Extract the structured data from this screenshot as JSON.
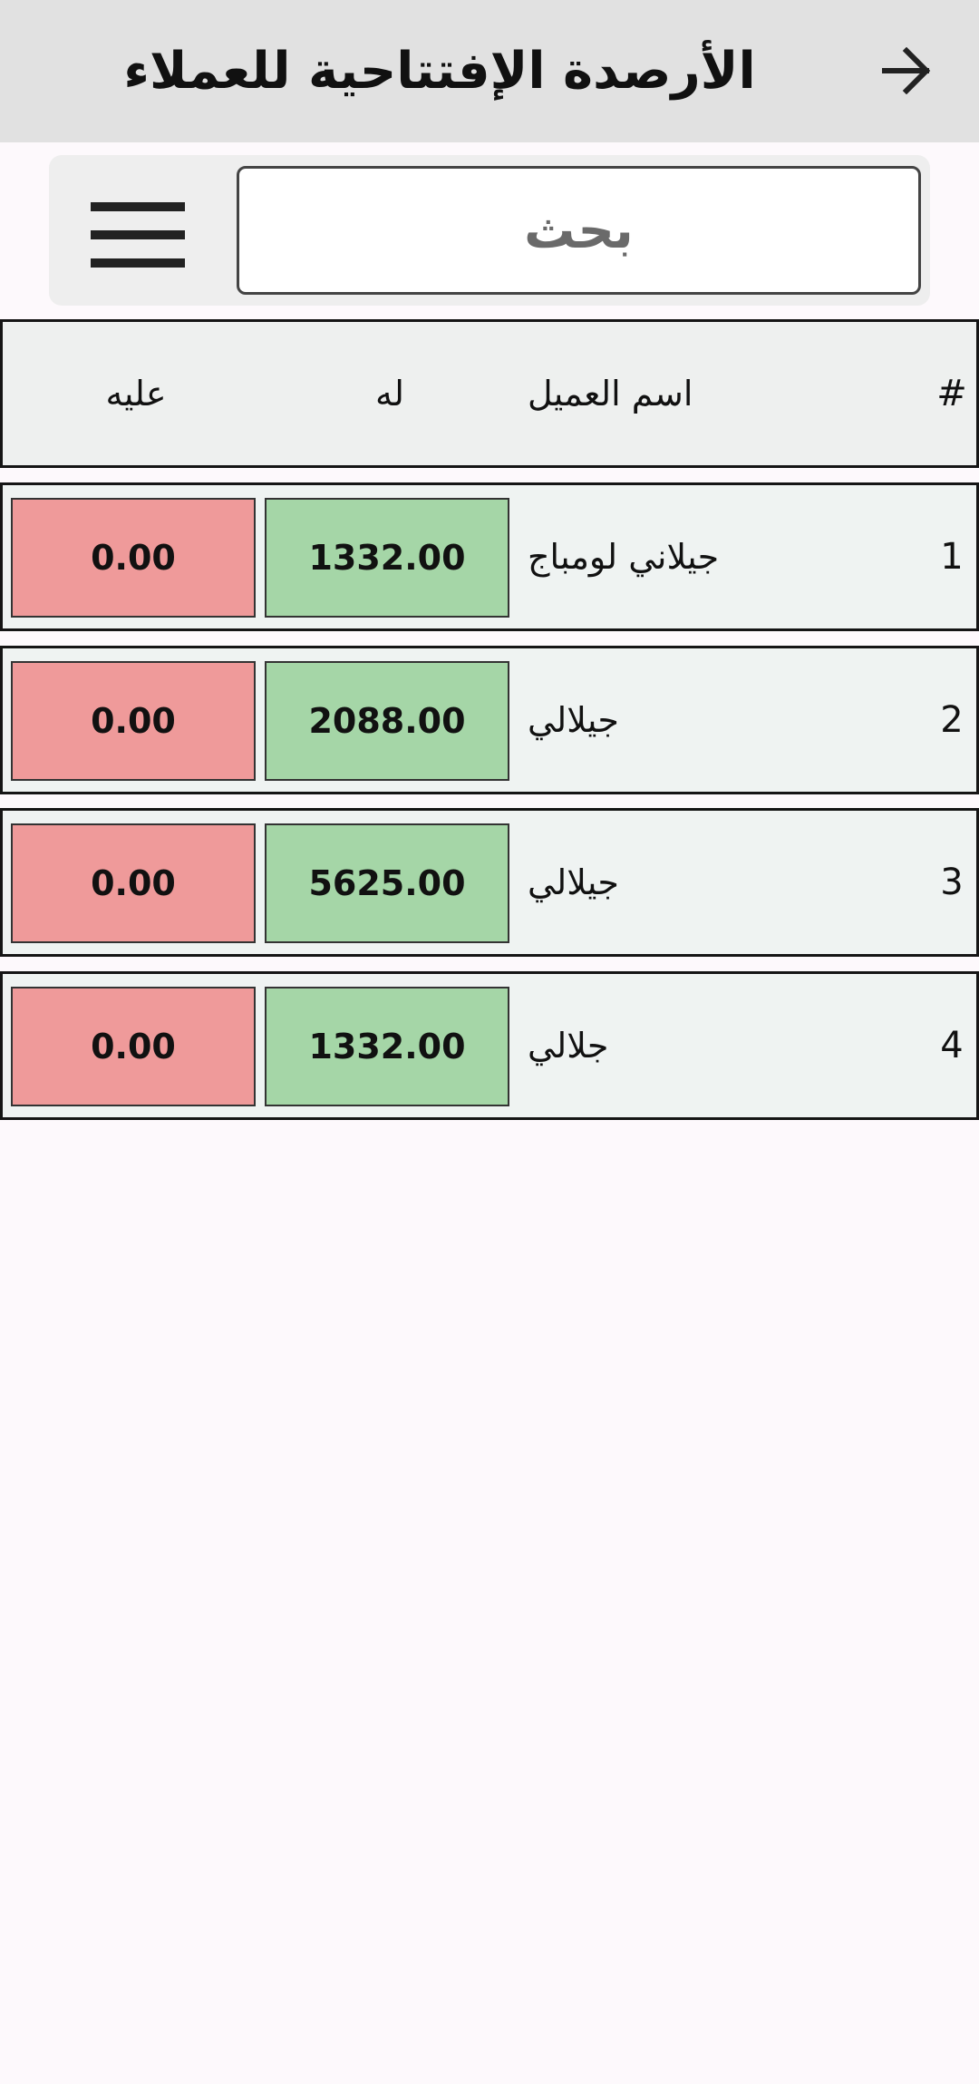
{
  "header": {
    "title": "الأرصدة الإفتتاحية للعملاء",
    "back_icon": "arrow-right-icon"
  },
  "search": {
    "placeholder": "بحث",
    "menu_icon": "hamburger-menu-icon"
  },
  "table": {
    "headers": {
      "index": "#",
      "name": "اسم العميل",
      "credit": "له",
      "debit": "عليه"
    },
    "rows": [
      {
        "index": "1",
        "name": "جيلاني لومباج",
        "credit": "1332.00",
        "debit": "0.00"
      },
      {
        "index": "2",
        "name": "جيلالي",
        "credit": "2088.00",
        "debit": "0.00"
      },
      {
        "index": "3",
        "name": "جيلالي",
        "credit": "5625.00",
        "debit": "0.00"
      },
      {
        "index": "4",
        "name": "جلالي",
        "credit": "1332.00",
        "debit": "0.00"
      }
    ]
  },
  "colors": {
    "credit": "#a5d6a7",
    "debit": "#ef9a9a",
    "header_bg": "#e1e1e1"
  }
}
